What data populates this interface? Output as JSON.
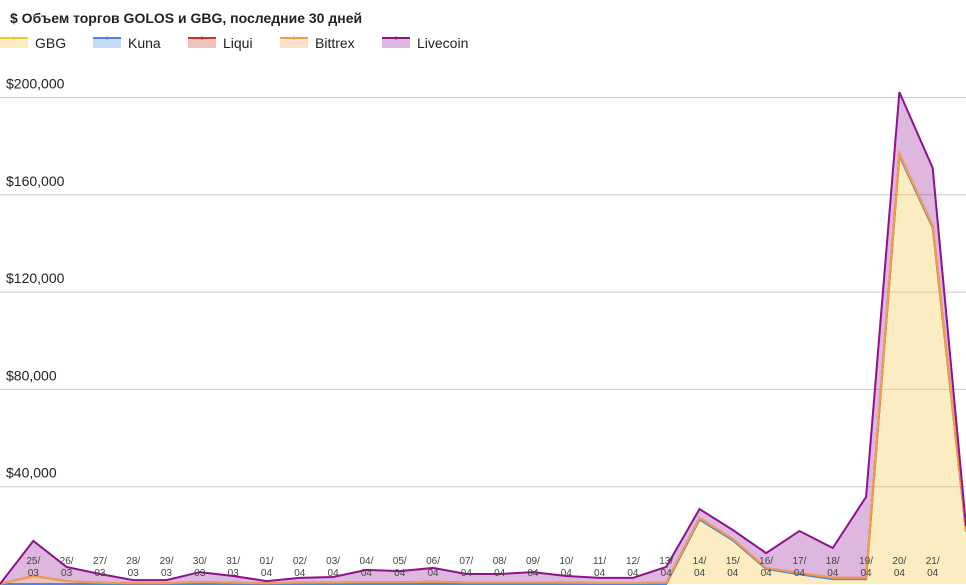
{
  "chart_data": {
    "type": "stacked_area",
    "title": "$ Объем торгов GOLOS и GBG, последние 30 дней",
    "categories": [
      null,
      "25/03",
      "26/03",
      "27/03",
      "28/03",
      "29/03",
      "30/03",
      "31/03",
      "01/04",
      "02/04",
      "03/04",
      "04/04",
      "05/04",
      "06/04",
      "07/04",
      "08/04",
      "09/04",
      "10/04",
      "11/04",
      "12/04",
      "13/04",
      "14/04",
      "15/04",
      "16/04",
      "17/04",
      "18/04",
      "19/04",
      "20/04",
      "21/04",
      null
    ],
    "series": [
      {
        "name": "GBG",
        "color": "#f1c232",
        "values": [
          0,
          0,
          0,
          0,
          0,
          0,
          0,
          0,
          0,
          0,
          0,
          0,
          0,
          0,
          0,
          0,
          0,
          0,
          0,
          0,
          0,
          26500,
          18000,
          6200,
          4000,
          2000,
          2000,
          176000,
          146500,
          21500
        ]
      },
      {
        "name": "Kuna",
        "color": "#4a86e8",
        "values": [
          0,
          0,
          0,
          0,
          0,
          0,
          0,
          0,
          0,
          0,
          0,
          0,
          0,
          0,
          0,
          0,
          0,
          0,
          0,
          0,
          0,
          0,
          0,
          0,
          0,
          0,
          0,
          0,
          0,
          0
        ]
      },
      {
        "name": "Liqui",
        "color": "#c0392b",
        "values": [
          0,
          3300,
          1200,
          500,
          300,
          300,
          800,
          500,
          300,
          500,
          600,
          700,
          700,
          900,
          600,
          600,
          600,
          500,
          400,
          400,
          500,
          600,
          500,
          400,
          500,
          500,
          500,
          700,
          600,
          300
        ]
      },
      {
        "name": "Bittrex",
        "color": "#f39c4a",
        "values": [
          0,
          0,
          0,
          0,
          0,
          0,
          0,
          0,
          0,
          0,
          0,
          0,
          0,
          0,
          0,
          0,
          0,
          0,
          0,
          0,
          0,
          0,
          0,
          0,
          0,
          0,
          0,
          0,
          0,
          0
        ]
      },
      {
        "name": "Livecoin",
        "color": "#8e128e",
        "values": [
          0,
          14400,
          5800,
          3600,
          1300,
          1300,
          4100,
          2800,
          900,
          2000,
          2300,
          5100,
          4600,
          5700,
          3500,
          3500,
          4300,
          2800,
          2100,
          2100,
          6500,
          3700,
          3700,
          6100,
          17300,
          12300,
          33300,
          25500,
          23900,
          2000
        ]
      }
    ],
    "ylim": [
      0,
      215000
    ],
    "yticks": [
      {
        "value": 40000,
        "label": "$40,000"
      },
      {
        "value": 80000,
        "label": "$80,000"
      },
      {
        "value": 120000,
        "label": "$120,000"
      },
      {
        "value": 160000,
        "label": "$160,000"
      },
      {
        "value": 200000,
        "label": "$200,000"
      }
    ],
    "grid": true
  }
}
